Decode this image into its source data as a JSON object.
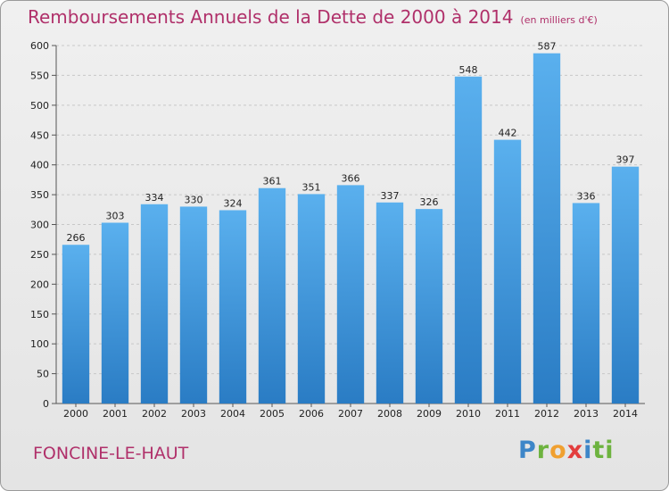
{
  "chart_data": {
    "type": "bar",
    "title": "Remboursements Annuels de la Dette de 2000 à 2014",
    "unit": "(en milliers d'€)",
    "categories": [
      "2000",
      "2001",
      "2002",
      "2003",
      "2004",
      "2005",
      "2006",
      "2007",
      "2008",
      "2009",
      "2010",
      "2011",
      "2012",
      "2013",
      "2014"
    ],
    "values": [
      266,
      303,
      334,
      330,
      324,
      361,
      351,
      366,
      337,
      326,
      548,
      442,
      587,
      336,
      397
    ],
    "ylim": [
      0,
      600
    ],
    "yticks": [
      0,
      50,
      100,
      150,
      200,
      250,
      300,
      350,
      400,
      450,
      500,
      550,
      600
    ],
    "grid": true,
    "bar_color": "#3a92d8"
  },
  "footer": {
    "town": "FONCINE-LE-HAUT",
    "logo": [
      "P",
      "r",
      "o",
      "x",
      "i",
      "ti"
    ]
  }
}
